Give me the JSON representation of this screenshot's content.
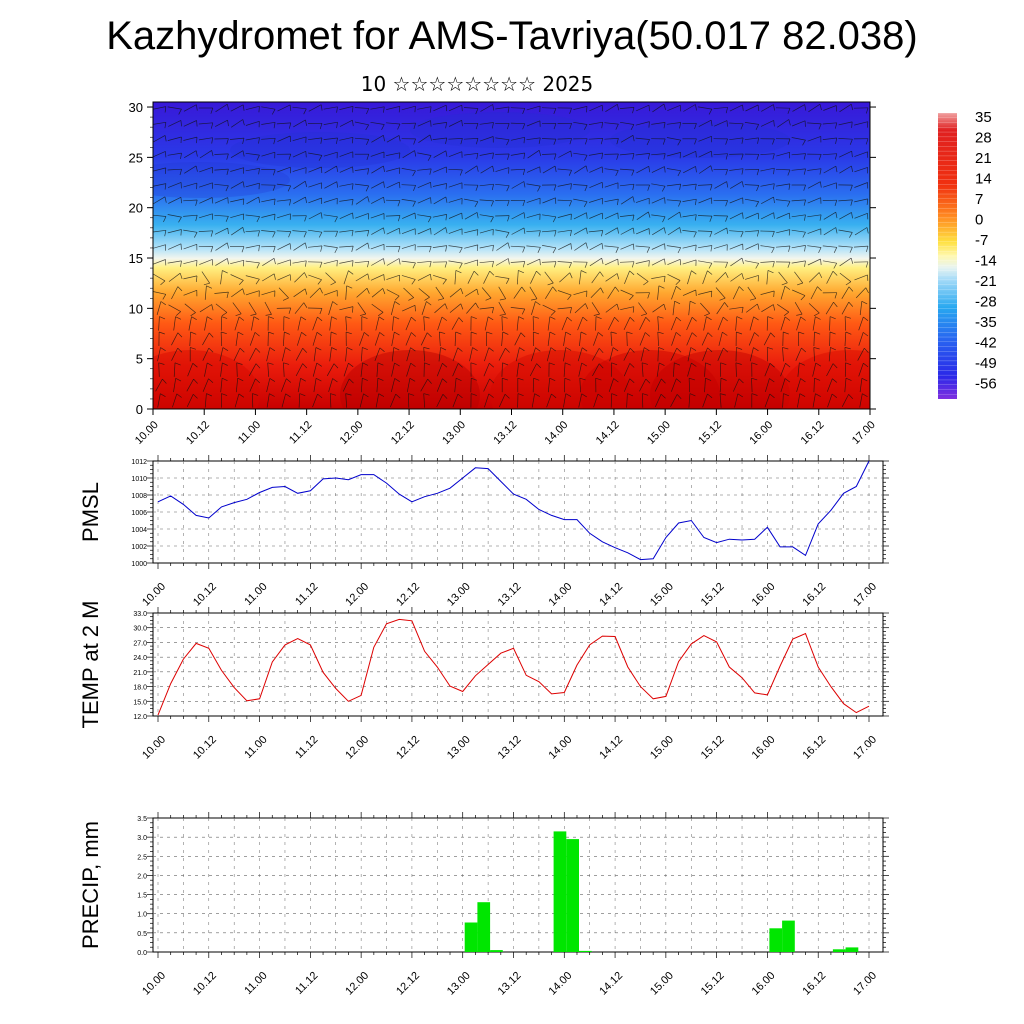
{
  "title": "Kazhydromet for AMS-Tavriya(50.017 82.038)",
  "subtitle": "10 ☆☆☆☆☆☆☆☆ 2025",
  "colors": {
    "pmsl_line": "#0000cc",
    "temp_line": "#dd0000",
    "precip_bar": "#00e600"
  },
  "chart_data": [
    {
      "type": "heatmap",
      "title": "",
      "x_tick_labels": [
        "10.00",
        "10.12",
        "11.00",
        "11.12",
        "12.00",
        "12.12",
        "13.00",
        "13.12",
        "14.00",
        "14.12",
        "15.00",
        "15.12",
        "16.00",
        "16.12",
        "17.00"
      ],
      "y_ticks": [
        0,
        5,
        10,
        15,
        20,
        25,
        30
      ],
      "ylim": [
        0,
        30.5
      ],
      "colorbar_labels": [
        "35",
        "28",
        "21",
        "14",
        "7",
        "0",
        "-7",
        "-14",
        "-21",
        "-28",
        "-35",
        "-42",
        "-49",
        "-56"
      ],
      "colorbar_range": [
        -60,
        38
      ],
      "color_scale": "blue (cold, aloft) to red (warm, surface)",
      "overlay": "wind barbs",
      "ylabel": ""
    },
    {
      "type": "line",
      "ylabel": "PMSL",
      "ylim": [
        1000,
        1012
      ],
      "y_tick_labels": [
        "1000",
        "1002",
        "1004",
        "1006",
        "1008",
        "1010",
        "1012"
      ],
      "x_tick_labels": [
        "10.00",
        "10.12",
        "11.00",
        "11.12",
        "12.00",
        "12.12",
        "13.00",
        "13.12",
        "14.00",
        "14.12",
        "15.00",
        "15.12",
        "16.00",
        "16.12",
        "17.00"
      ],
      "x_hours_step": 3,
      "values": [
        1007.2,
        1007.9,
        1006.9,
        1005.6,
        1005.3,
        1006.6,
        1007.1,
        1007.5,
        1008.3,
        1008.9,
        1009.0,
        1008.2,
        1008.5,
        1009.9,
        1010.0,
        1009.8,
        1010.4,
        1010.4,
        1009.4,
        1008.1,
        1007.2,
        1007.8,
        1008.2,
        1008.8,
        1010.0,
        1011.2,
        1011.1,
        1009.6,
        1008.1,
        1007.5,
        1006.3,
        1005.6,
        1005.1,
        1005.1,
        1003.5,
        1002.5,
        1001.8,
        1001.2,
        1000.4,
        1000.5,
        1003.0,
        1004.7,
        1005.0,
        1003.0,
        1002.4,
        1002.8,
        1002.7,
        1002.8,
        1004.2,
        1001.9,
        1001.9,
        1000.9,
        1004.6,
        1006.2,
        1008.2,
        1009.0,
        1012.0
      ]
    },
    {
      "type": "line",
      "ylabel": "TEMP at 2 M",
      "ylim": [
        12.0,
        33.0
      ],
      "y_tick_labels": [
        "12.0",
        "15.0",
        "18.0",
        "21.0",
        "24.0",
        "27.0",
        "30.0",
        "33.0"
      ],
      "x_tick_labels": [
        "10.00",
        "10.12",
        "11.00",
        "11.12",
        "12.00",
        "12.12",
        "13.00",
        "13.12",
        "14.00",
        "14.12",
        "15.00",
        "15.12",
        "16.00",
        "16.12",
        "17.00"
      ],
      "x_hours_step": 3,
      "values": [
        12.2,
        18.6,
        23.6,
        26.8,
        25.8,
        21.3,
        17.8,
        15.1,
        15.5,
        23.0,
        26.5,
        27.8,
        26.5,
        20.9,
        17.6,
        15.0,
        16.2,
        26.0,
        30.8,
        31.7,
        31.4,
        25.2,
        22.0,
        18.1,
        17.0,
        20.2,
        22.5,
        24.8,
        25.8,
        20.3,
        19.0,
        16.5,
        16.8,
        22.4,
        26.5,
        28.3,
        28.2,
        22.0,
        18.0,
        15.5,
        16.0,
        23.1,
        26.7,
        28.4,
        27.1,
        22.0,
        19.8,
        16.7,
        16.3,
        22.2,
        27.7,
        28.8,
        22.0,
        18.0,
        14.5,
        12.7,
        14.0
      ]
    },
    {
      "type": "bar",
      "ylabel": "PRECIP, mm",
      "ylim": [
        0.0,
        3.5
      ],
      "y_tick_labels": [
        "0.0",
        "0.5",
        "1.0",
        "1.5",
        "2.0",
        "2.5",
        "3.0",
        "3.5"
      ],
      "x_tick_labels": [
        "10.00",
        "10.12",
        "11.00",
        "11.12",
        "12.00",
        "12.12",
        "13.00",
        "13.12",
        "14.00",
        "14.12",
        "15.00",
        "15.12",
        "16.00",
        "16.12",
        "17.00"
      ],
      "x_hours_step": 3,
      "values": [
        0,
        0,
        0,
        0,
        0,
        0,
        0,
        0,
        0,
        0,
        0,
        0,
        0,
        0,
        0,
        0,
        0,
        0,
        0,
        0,
        0,
        0,
        0,
        0,
        0.77,
        1.3,
        0.05,
        0,
        0,
        0,
        0,
        3.15,
        2.95,
        0.03,
        0,
        0,
        0,
        0,
        0,
        0,
        0,
        0,
        0,
        0,
        0,
        0,
        0,
        0,
        0.62,
        0.82,
        0,
        0,
        0,
        0.07,
        0.12,
        0,
        0
      ]
    }
  ]
}
